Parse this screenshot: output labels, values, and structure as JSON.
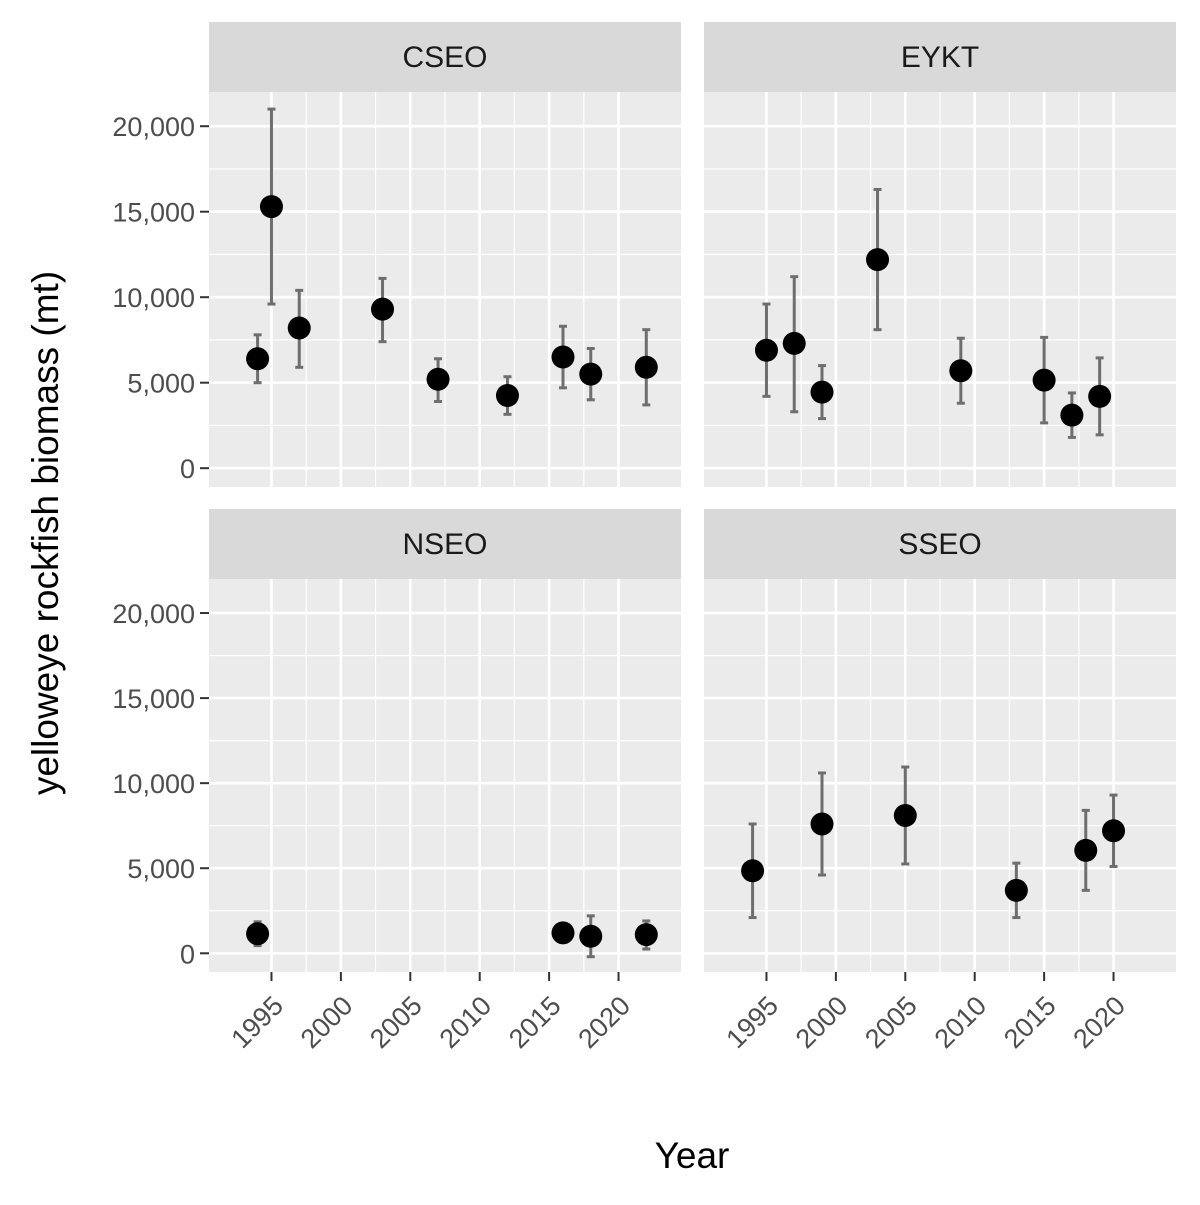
{
  "chart_data": {
    "type": "scatter",
    "layout": "facet_wrap 2x2",
    "xlabel": "Year",
    "ylabel": "yelloweye rockfish biomass (mt)",
    "xlim": [
      1990.5,
      2024.5
    ],
    "ylim": [
      -1100,
      22000
    ],
    "x_ticks": [
      1995,
      2000,
      2005,
      2010,
      2015,
      2020
    ],
    "x_tick_labels": [
      "1995",
      "2000",
      "2005",
      "2010",
      "2015",
      "2020"
    ],
    "y_ticks": [
      0,
      5000,
      10000,
      15000,
      20000
    ],
    "y_tick_labels": [
      "0",
      "5,000",
      "10,000",
      "15,000",
      "20,000"
    ],
    "grid": true,
    "panel_background": "#ebebeb",
    "strip_background": "#d9d9d9",
    "point_color": "#000000",
    "errorbar_color": "#6e6e6e",
    "panels": [
      {
        "label": "CSEO",
        "points": [
          {
            "x": 1994,
            "y": 6400,
            "lo": 5000,
            "hi": 7800
          },
          {
            "x": 1995,
            "y": 15300,
            "lo": 9600,
            "hi": 21000
          },
          {
            "x": 1997,
            "y": 8200,
            "lo": 5900,
            "hi": 10400
          },
          {
            "x": 2003,
            "y": 9300,
            "lo": 7400,
            "hi": 11100
          },
          {
            "x": 2007,
            "y": 5200,
            "lo": 3900,
            "hi": 6400
          },
          {
            "x": 2012,
            "y": 4250,
            "lo": 3150,
            "hi": 5350
          },
          {
            "x": 2016,
            "y": 6500,
            "lo": 4700,
            "hi": 8300
          },
          {
            "x": 2018,
            "y": 5500,
            "lo": 4000,
            "hi": 7000
          },
          {
            "x": 2022,
            "y": 5900,
            "lo": 3700,
            "hi": 8100
          }
        ]
      },
      {
        "label": "EYKT",
        "points": [
          {
            "x": 1995,
            "y": 6900,
            "lo": 4200,
            "hi": 9600
          },
          {
            "x": 1997,
            "y": 7300,
            "lo": 3300,
            "hi": 11200
          },
          {
            "x": 1999,
            "y": 4450,
            "lo": 2900,
            "hi": 6000
          },
          {
            "x": 2003,
            "y": 12200,
            "lo": 8100,
            "hi": 16300
          },
          {
            "x": 2009,
            "y": 5700,
            "lo": 3800,
            "hi": 7600
          },
          {
            "x": 2015,
            "y": 5150,
            "lo": 2650,
            "hi": 7650
          },
          {
            "x": 2017,
            "y": 3100,
            "lo": 1800,
            "hi": 4400
          },
          {
            "x": 2019,
            "y": 4200,
            "lo": 1950,
            "hi": 6450
          }
        ]
      },
      {
        "label": "NSEO",
        "points": [
          {
            "x": 1994,
            "y": 1150,
            "lo": 450,
            "hi": 1850
          },
          {
            "x": 2016,
            "y": 1200,
            "lo": 650,
            "hi": 1750
          },
          {
            "x": 2018,
            "y": 1000,
            "lo": -200,
            "hi": 2200
          },
          {
            "x": 2022,
            "y": 1100,
            "lo": 250,
            "hi": 1900
          }
        ]
      },
      {
        "label": "SSEO",
        "points": [
          {
            "x": 1994,
            "y": 4850,
            "lo": 2100,
            "hi": 7600
          },
          {
            "x": 1999,
            "y": 7600,
            "lo": 4600,
            "hi": 10600
          },
          {
            "x": 2005,
            "y": 8100,
            "lo": 5250,
            "hi": 10950
          },
          {
            "x": 2013,
            "y": 3700,
            "lo": 2100,
            "hi": 5300
          },
          {
            "x": 2018,
            "y": 6050,
            "lo": 3700,
            "hi": 8400
          },
          {
            "x": 2020,
            "y": 7200,
            "lo": 5100,
            "hi": 9300
          }
        ]
      }
    ]
  }
}
